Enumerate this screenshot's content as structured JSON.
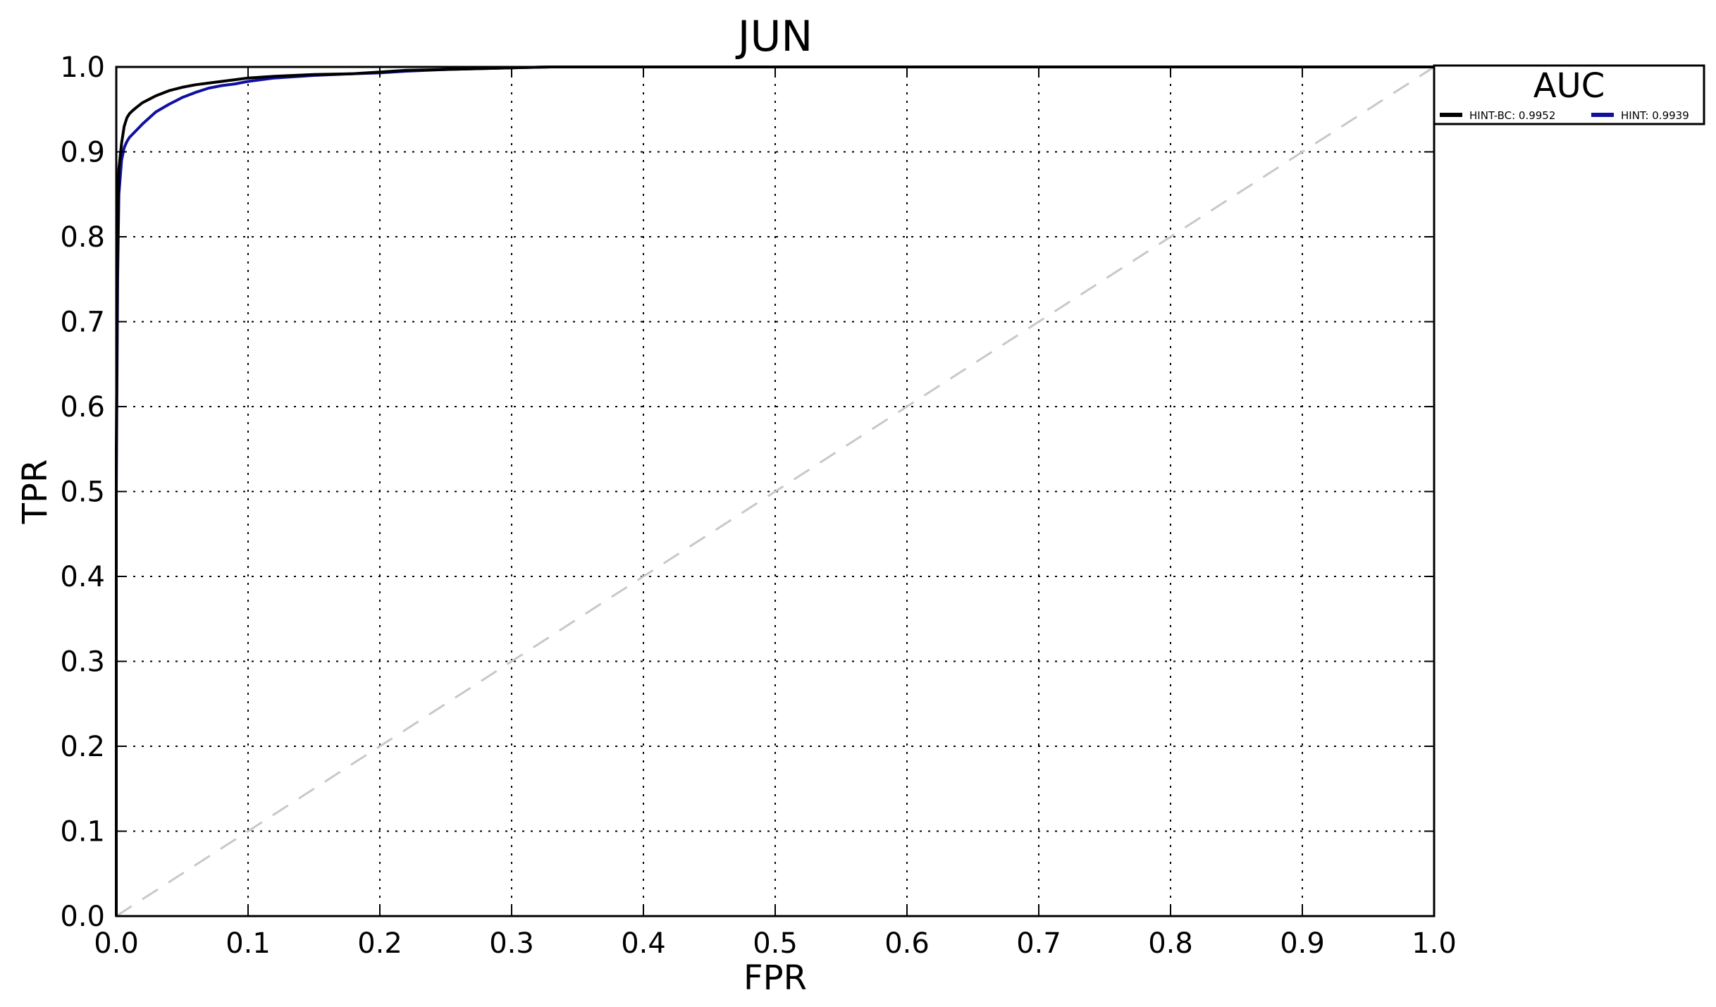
{
  "chart_data": {
    "type": "line",
    "title": "JUN",
    "xlabel": "FPR",
    "ylabel": "TPR",
    "xlim": [
      0.0,
      1.0
    ],
    "ylim": [
      0.0,
      1.0
    ],
    "x_ticks": [
      "0.0",
      "0.1",
      "0.2",
      "0.3",
      "0.4",
      "0.5",
      "0.6",
      "0.7",
      "0.8",
      "0.9",
      "1.0"
    ],
    "y_ticks": [
      "0.0",
      "0.1",
      "0.2",
      "0.3",
      "0.4",
      "0.5",
      "0.6",
      "0.7",
      "0.8",
      "0.9",
      "1.0"
    ],
    "grid": true,
    "grid_style": "dotted",
    "legend": {
      "title": "AUC",
      "placement": "outside top-right",
      "entries": [
        "HINT-BC: 0.9952",
        "HINT: 0.9939"
      ]
    },
    "reference_line": {
      "x": [
        0.0,
        1.0
      ],
      "y": [
        0.0,
        1.0
      ],
      "color": "#c8c8c8",
      "style": "dashed"
    },
    "series": [
      {
        "name": "HINT-BC: 0.9952",
        "color": "#000000",
        "x": [
          0.0,
          0.0,
          0.001,
          0.002,
          0.004,
          0.006,
          0.008,
          0.01,
          0.012,
          0.015,
          0.02,
          0.025,
          0.03,
          0.04,
          0.05,
          0.06,
          0.07,
          0.08,
          0.09,
          0.1,
          0.12,
          0.15,
          0.18,
          0.2,
          0.22,
          0.25,
          0.3,
          0.33,
          0.4,
          0.6,
          0.8,
          1.0
        ],
        "y": [
          0.0,
          0.55,
          0.8,
          0.88,
          0.91,
          0.93,
          0.94,
          0.945,
          0.948,
          0.952,
          0.958,
          0.962,
          0.966,
          0.972,
          0.976,
          0.979,
          0.981,
          0.983,
          0.985,
          0.987,
          0.989,
          0.991,
          0.992,
          0.994,
          0.996,
          0.997,
          0.999,
          1.0,
          1.0,
          1.0,
          1.0,
          1.0
        ]
      },
      {
        "name": "HINT: 0.9939",
        "color": "#1010a0",
        "x": [
          0.0,
          0.0,
          0.001,
          0.002,
          0.004,
          0.006,
          0.008,
          0.01,
          0.015,
          0.02,
          0.025,
          0.03,
          0.04,
          0.05,
          0.06,
          0.07,
          0.08,
          0.09,
          0.1,
          0.12,
          0.15,
          0.18,
          0.2,
          0.22,
          0.25,
          0.3,
          0.33,
          0.4,
          0.6,
          0.8,
          1.0
        ],
        "y": [
          0.0,
          0.5,
          0.75,
          0.85,
          0.89,
          0.905,
          0.912,
          0.917,
          0.925,
          0.933,
          0.94,
          0.947,
          0.956,
          0.964,
          0.97,
          0.975,
          0.978,
          0.98,
          0.983,
          0.987,
          0.99,
          0.992,
          0.993,
          0.995,
          0.997,
          0.999,
          1.0,
          1.0,
          1.0,
          1.0,
          1.0
        ]
      }
    ]
  }
}
